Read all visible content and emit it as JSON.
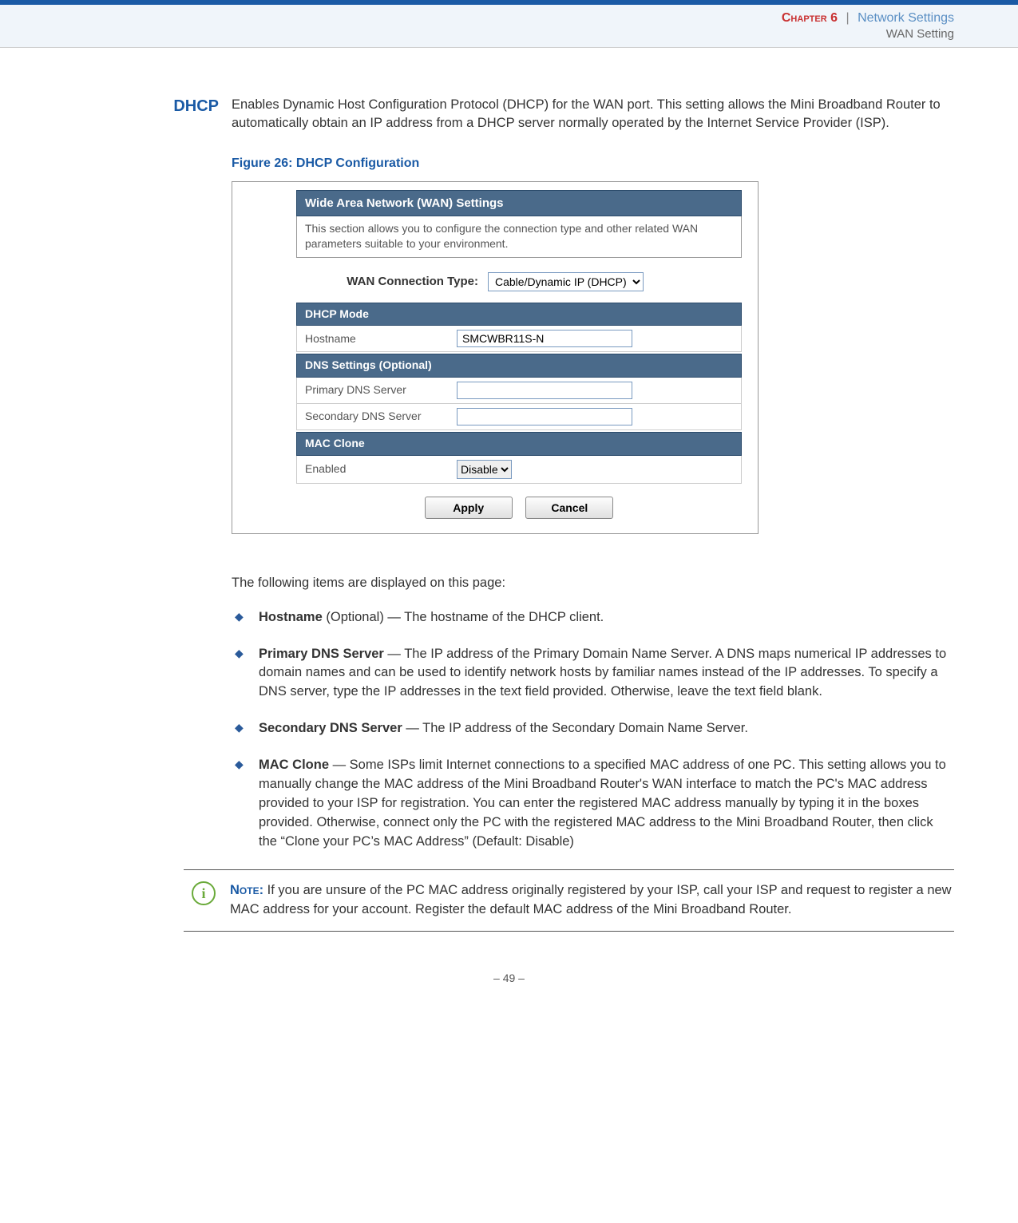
{
  "header": {
    "chapter": "Chapter 6",
    "sep": "|",
    "chapter_title": "Network Settings",
    "sub": "WAN Setting"
  },
  "section": {
    "label": "DHCP",
    "intro": "Enables Dynamic Host Configuration Protocol (DHCP) for the WAN port. This setting allows the Mini Broadband Router to automatically obtain an IP address from a DHCP server normally operated by the Internet Service Provider (ISP)."
  },
  "figure": {
    "caption": "Figure 26:  DHCP Configuration",
    "panel_title": "Wide Area Network (WAN) Settings",
    "panel_desc": "This section allows you to configure the connection type and other related WAN parameters suitable to your environment.",
    "conn_label": "WAN Connection Type:",
    "conn_value": "Cable/Dynamic IP (DHCP)",
    "dhcp_mode": "DHCP Mode",
    "hostname_label": "Hostname",
    "hostname_value": "SMCWBR11S-N",
    "dns_settings": "DNS Settings (Optional)",
    "pdns_label": "Primary DNS Server",
    "pdns_value": "",
    "sdns_label": "Secondary DNS Server",
    "sdns_value": "",
    "mac_clone": "MAC Clone",
    "enabled_label": "Enabled",
    "enabled_value": "Disable",
    "apply": "Apply",
    "cancel": "Cancel"
  },
  "follow": "The following items are displayed on this page:",
  "items": [
    {
      "term": "Hostname",
      "rest": " (Optional) — The hostname of the DHCP client."
    },
    {
      "term": "Primary DNS Server",
      "rest": " — The IP address of the Primary Domain Name Server. A DNS maps numerical IP addresses to domain names and can be used to identify network hosts by familiar names instead of the IP addresses. To specify a DNS server, type the IP addresses in the text field provided. Otherwise, leave the text field blank."
    },
    {
      "term": "Secondary DNS Server",
      "rest": " — The IP address of the Secondary Domain Name Server."
    },
    {
      "term": "MAC Clone",
      "rest": " — Some ISPs limit Internet connections to a specified MAC address of one PC. This setting allows you to manually change the MAC address of the Mini Broadband Router's WAN interface to match the PC's MAC address provided to your ISP for registration. You can enter the registered MAC address manually by typing it in the boxes provided. Otherwise, connect only the PC with the registered MAC address to the Mini Broadband Router, then click the “Clone your PC’s MAC Address” (Default: Disable)"
    }
  ],
  "note": {
    "label": "Note:",
    "text": " If you are unsure of the PC MAC address originally registered by your ISP, call your ISP and request to register a new MAC address for your account. Register the default MAC address of the Mini Broadband Router."
  },
  "pagenum": "–  49  –"
}
